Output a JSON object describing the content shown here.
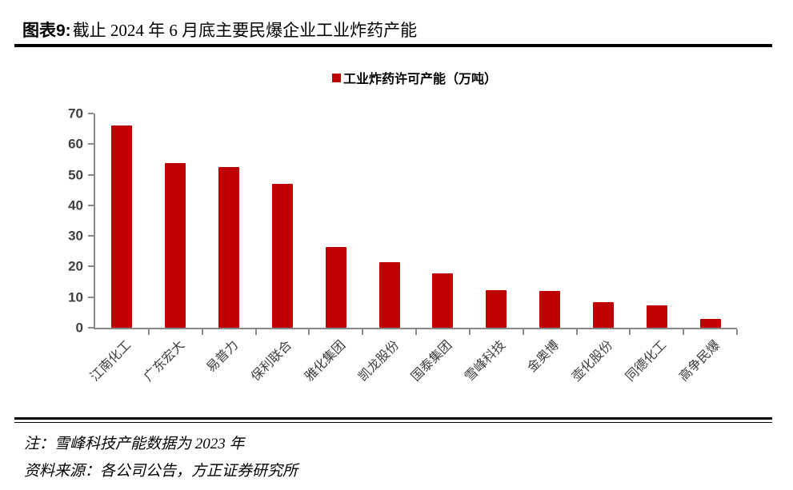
{
  "header": {
    "title_prefix": "图表9:",
    "title_text": "截止 2024 年 6 月底主要民爆企业工业炸药产能"
  },
  "chart_data": {
    "type": "bar",
    "title": "截止 2024 年 6 月底主要民爆企业工业炸药产能",
    "legend": "工业炸药许可产能（万吨）",
    "legend_position": "top-center",
    "categories": [
      "江南化工",
      "广东宏大",
      "易普力",
      "保利联合",
      "雅化集团",
      "凯龙股份",
      "国泰集团",
      "雪峰科技",
      "金奥博",
      "壶化股份",
      "同德化工",
      "高争民爆"
    ],
    "values": [
      66,
      53.7,
      52.5,
      47,
      26.5,
      21.4,
      17.8,
      12.2,
      11.9,
      8.3,
      7.4,
      2.8
    ],
    "xlabel": "",
    "ylabel": "",
    "ylim": [
      0,
      70
    ],
    "yticks": [
      0,
      10,
      20,
      30,
      40,
      50,
      60,
      70
    ],
    "grid": false,
    "x_label_rotation": -45,
    "bar_color": "#c00000",
    "axis_color": "#898989",
    "tick_label_color": "#3f3f3f"
  },
  "footer": {
    "note": "注：雪峰科技产能数据为 2023 年",
    "source": "资料来源：各公司公告，方正证券研究所"
  }
}
